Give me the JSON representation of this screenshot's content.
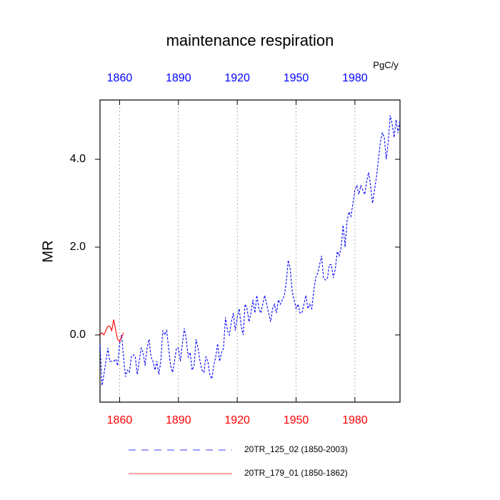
{
  "chart_data": {
    "type": "line",
    "title": "maintenance respiration",
    "y_label": "MR",
    "units_label": "PgC/y",
    "xlim": [
      1850,
      2003
    ],
    "xticks": [
      1860,
      1890,
      1920,
      1950,
      1980
    ],
    "ylim": [
      -1.53,
      5.35
    ],
    "yticks": [
      {
        "value": 0,
        "label": "0.0"
      },
      {
        "value": 2,
        "label": "2.0"
      },
      {
        "value": 4,
        "label": "4.0"
      }
    ],
    "grid": true,
    "series": [
      {
        "name": "20TR_125_02 (1850-2003)",
        "color": "#0000ff",
        "linestyle": "dashed",
        "x": [
          1850,
          1851,
          1852,
          1853,
          1854,
          1855,
          1856,
          1857,
          1858,
          1859,
          1860,
          1861,
          1862,
          1863,
          1864,
          1865,
          1866,
          1867,
          1868,
          1869,
          1870,
          1871,
          1872,
          1873,
          1874,
          1875,
          1876,
          1877,
          1878,
          1879,
          1880,
          1881,
          1882,
          1883,
          1884,
          1885,
          1886,
          1887,
          1888,
          1889,
          1890,
          1891,
          1892,
          1893,
          1894,
          1895,
          1896,
          1897,
          1898,
          1899,
          1900,
          1901,
          1902,
          1903,
          1904,
          1905,
          1906,
          1907,
          1908,
          1909,
          1910,
          1911,
          1912,
          1913,
          1914,
          1915,
          1916,
          1917,
          1918,
          1919,
          1920,
          1921,
          1922,
          1923,
          1924,
          1925,
          1926,
          1927,
          1928,
          1929,
          1930,
          1931,
          1932,
          1933,
          1934,
          1935,
          1936,
          1937,
          1938,
          1939,
          1940,
          1941,
          1942,
          1943,
          1944,
          1945,
          1946,
          1947,
          1948,
          1949,
          1950,
          1951,
          1952,
          1953,
          1954,
          1955,
          1956,
          1957,
          1958,
          1959,
          1960,
          1961,
          1962,
          1963,
          1964,
          1965,
          1966,
          1967,
          1968,
          1969,
          1970,
          1971,
          1972,
          1973,
          1974,
          1975,
          1976,
          1977,
          1978,
          1979,
          1980,
          1981,
          1982,
          1983,
          1984,
          1985,
          1986,
          1987,
          1988,
          1989,
          1990,
          1991,
          1992,
          1993,
          1994,
          1995,
          1996,
          1997,
          1998,
          1999,
          2000,
          2001,
          2002,
          2003
        ],
        "values": [
          -0.2,
          -1.15,
          -0.9,
          -0.6,
          -0.3,
          -0.6,
          -0.6,
          -0.6,
          -0.55,
          -0.7,
          -0.2,
          0.0,
          -0.5,
          -0.95,
          -0.8,
          -0.85,
          -0.5,
          -0.45,
          -0.5,
          -0.9,
          -0.6,
          -0.3,
          -0.4,
          -0.7,
          -0.3,
          -0.1,
          -0.5,
          -0.6,
          -0.8,
          -0.6,
          -0.9,
          -0.6,
          0.1,
          0.0,
          0.1,
          -0.3,
          -0.7,
          -0.85,
          -0.6,
          -0.3,
          -0.3,
          -0.6,
          -0.2,
          0.15,
          -0.1,
          -0.5,
          -0.4,
          -0.8,
          -0.7,
          -0.1,
          -0.3,
          -0.6,
          -0.8,
          -0.85,
          -0.5,
          -0.6,
          -0.9,
          -1.0,
          -0.7,
          -0.5,
          -0.2,
          -0.6,
          -0.4,
          -0.3,
          0.4,
          0.1,
          0.0,
          0.3,
          0.5,
          0.1,
          0.4,
          0.6,
          0.2,
          0.0,
          0.7,
          0.6,
          0.3,
          0.5,
          0.8,
          0.5,
          0.9,
          0.6,
          0.5,
          0.7,
          0.9,
          0.7,
          0.5,
          0.3,
          0.6,
          0.7,
          0.5,
          0.8,
          0.7,
          0.8,
          0.9,
          1.2,
          1.7,
          1.5,
          1.0,
          0.8,
          0.6,
          0.7,
          0.5,
          0.5,
          0.7,
          0.9,
          0.6,
          0.7,
          0.6,
          1.0,
          1.3,
          1.4,
          1.6,
          1.8,
          1.3,
          1.25,
          1.3,
          1.6,
          1.6,
          1.3,
          1.5,
          1.9,
          1.8,
          2.0,
          2.5,
          2.0,
          2.6,
          2.8,
          2.7,
          3.0,
          3.3,
          3.4,
          3.2,
          3.4,
          3.3,
          3.2,
          3.5,
          3.7,
          3.4,
          3.0,
          3.3,
          3.6,
          4.0,
          4.4,
          4.6,
          4.5,
          4.0,
          4.4,
          5.0,
          4.8,
          4.5,
          4.9,
          4.6,
          4.9
        ]
      },
      {
        "name": "20TR_179_01 (1850-1862)",
        "color": "#ff0000",
        "linestyle": "solid",
        "x": [
          1850,
          1851,
          1852,
          1853,
          1854,
          1855,
          1856,
          1857,
          1858,
          1859,
          1860,
          1861,
          1862
        ],
        "values": [
          0.0,
          0.05,
          0.0,
          0.1,
          0.2,
          0.2,
          0.1,
          0.35,
          0.1,
          -0.1,
          -0.15,
          -0.05,
          0.05
        ]
      }
    ]
  }
}
